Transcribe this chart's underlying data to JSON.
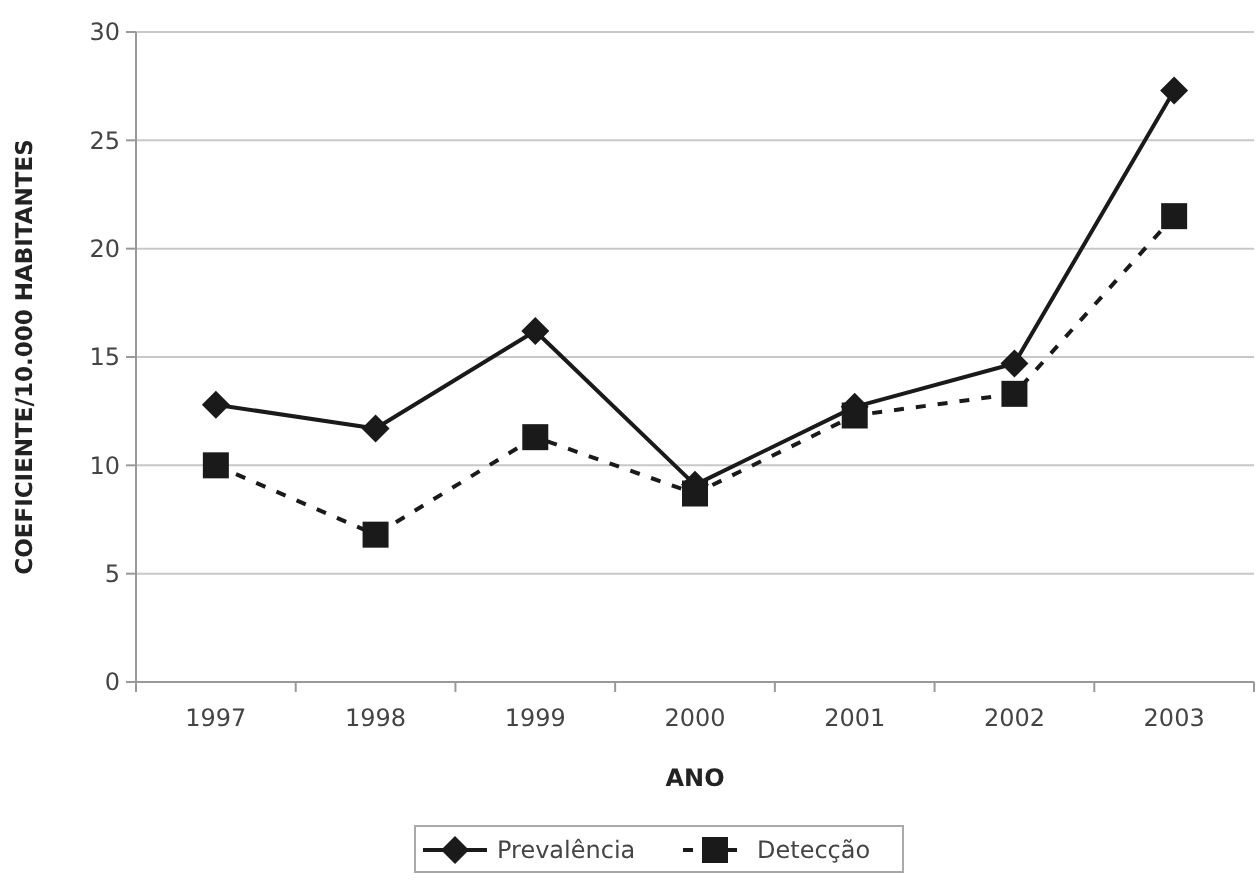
{
  "chart_data": {
    "type": "line",
    "xlabel": "ANO",
    "ylabel": "COEFICIENTE/10.000 HABITANTES",
    "categories": [
      "1997",
      "1998",
      "1999",
      "2000",
      "2001",
      "2002",
      "2003"
    ],
    "series": [
      {
        "name": "Prevalência",
        "color": "#1a1a1a",
        "marker": "diamond",
        "line_style": "solid",
        "values": [
          12.8,
          11.7,
          16.2,
          9.1,
          12.7,
          14.7,
          27.3
        ]
      },
      {
        "name": "Detecção",
        "color": "#1a1a1a",
        "marker": "square",
        "line_style": "dashed",
        "values": [
          10.0,
          6.8,
          11.3,
          8.7,
          12.3,
          13.3,
          21.5
        ]
      }
    ],
    "ylim": [
      0,
      30
    ],
    "yticks": [
      0,
      5,
      10,
      15,
      20,
      25,
      30
    ],
    "grid": "y",
    "legend": "bottom"
  }
}
